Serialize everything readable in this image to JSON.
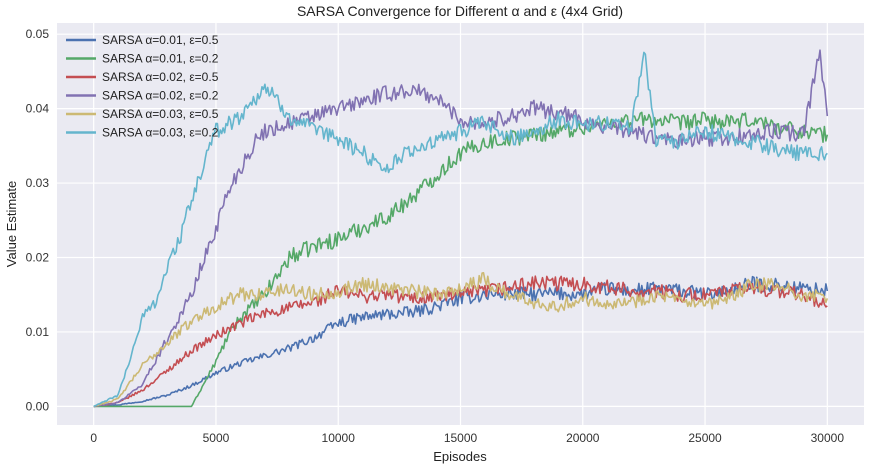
{
  "chart_data": {
    "type": "line",
    "title": "SARSA Convergence for Different α and ε (4x4 Grid)",
    "xlabel": "Episodes",
    "ylabel": "Value Estimate",
    "xlim": [
      -1500,
      31500
    ],
    "ylim": [
      -0.0025,
      0.0515
    ],
    "xticks": [
      0,
      5000,
      10000,
      15000,
      20000,
      25000,
      30000
    ],
    "xtick_labels": [
      "0",
      "5000",
      "10000",
      "15000",
      "20000",
      "25000",
      "30000"
    ],
    "yticks": [
      0.0,
      0.01,
      0.02,
      0.03,
      0.04,
      0.05
    ],
    "ytick_labels": [
      "0.00",
      "0.01",
      "0.02",
      "0.03",
      "0.04",
      "0.05"
    ],
    "grid": true,
    "legend_position": "top-left",
    "background": "#EAEAF2",
    "series": [
      {
        "name": "SARSA α=0.01, ε=0.5",
        "color": "#4C72B0",
        "x": [
          0,
          1000,
          2000,
          3000,
          4000,
          5000,
          6000,
          7000,
          8000,
          9000,
          10000,
          11000,
          12000,
          13000,
          14000,
          15000,
          16000,
          17000,
          18000,
          19000,
          20000,
          21000,
          22000,
          23000,
          24000,
          25000,
          26000,
          27000,
          28000,
          29000,
          30000
        ],
        "values": [
          0.0,
          0.0002,
          0.0007,
          0.0015,
          0.0028,
          0.0045,
          0.0058,
          0.0068,
          0.0078,
          0.0092,
          0.0112,
          0.012,
          0.0124,
          0.0126,
          0.0134,
          0.0145,
          0.015,
          0.0152,
          0.015,
          0.0152,
          0.015,
          0.0158,
          0.0155,
          0.0158,
          0.0155,
          0.015,
          0.0155,
          0.0165,
          0.0162,
          0.0158,
          0.0155
        ]
      },
      {
        "name": "SARSA α=0.01, ε=0.2",
        "color": "#55A868",
        "x": [
          0,
          1000,
          2000,
          3000,
          4000,
          4500,
          5000,
          5500,
          6000,
          6500,
          7000,
          7500,
          8000,
          9000,
          10000,
          11000,
          12000,
          13000,
          14000,
          15000,
          16000,
          17000,
          18000,
          19000,
          20000,
          21000,
          22000,
          23000,
          24000,
          25000,
          26000,
          27000,
          28000,
          29000,
          30000
        ],
        "values": [
          0.0,
          0.0,
          0.0,
          0.0,
          0.0,
          0.003,
          0.006,
          0.0095,
          0.012,
          0.0135,
          0.015,
          0.0175,
          0.02,
          0.0215,
          0.0225,
          0.024,
          0.0255,
          0.028,
          0.031,
          0.034,
          0.0355,
          0.036,
          0.0365,
          0.037,
          0.0375,
          0.038,
          0.0385,
          0.0385,
          0.038,
          0.0385,
          0.038,
          0.0385,
          0.0375,
          0.037,
          0.0365
        ]
      },
      {
        "name": "SARSA α=0.02, ε=0.5",
        "color": "#C44E52",
        "x": [
          0,
          1000,
          2000,
          3000,
          4000,
          5000,
          6000,
          7000,
          8000,
          9000,
          10000,
          11000,
          12000,
          13000,
          14000,
          15000,
          16000,
          17000,
          18000,
          19000,
          20000,
          21000,
          22000,
          23000,
          24000,
          25000,
          26000,
          27000,
          28000,
          29000,
          30000
        ],
        "values": [
          0.0,
          0.0005,
          0.0022,
          0.0048,
          0.0075,
          0.0095,
          0.0112,
          0.0125,
          0.0132,
          0.014,
          0.0155,
          0.0148,
          0.015,
          0.0145,
          0.0148,
          0.015,
          0.0155,
          0.016,
          0.0165,
          0.0165,
          0.0165,
          0.016,
          0.0155,
          0.0155,
          0.015,
          0.015,
          0.0155,
          0.016,
          0.0155,
          0.015,
          0.0135
        ]
      },
      {
        "name": "SARSA α=0.02, ε=0.2",
        "color": "#8172B2",
        "x": [
          0,
          1000,
          2000,
          3000,
          4000,
          5000,
          5500,
          6000,
          6500,
          7000,
          8000,
          9000,
          10000,
          11000,
          12000,
          13000,
          14000,
          15000,
          16000,
          17000,
          18000,
          19000,
          20000,
          21000,
          22000,
          23000,
          24000,
          25000,
          26000,
          27000,
          28000,
          29000,
          29700,
          30000
        ],
        "values": [
          0.0,
          0.0005,
          0.003,
          0.009,
          0.015,
          0.024,
          0.029,
          0.032,
          0.035,
          0.037,
          0.038,
          0.039,
          0.04,
          0.041,
          0.042,
          0.0425,
          0.0415,
          0.0385,
          0.038,
          0.039,
          0.04,
          0.0395,
          0.0385,
          0.0375,
          0.037,
          0.036,
          0.0355,
          0.036,
          0.036,
          0.0365,
          0.037,
          0.0365,
          0.0475,
          0.039
        ]
      },
      {
        "name": "SARSA α=0.03, ε=0.5",
        "color": "#CCB974",
        "x": [
          0,
          1000,
          2000,
          3000,
          4000,
          5000,
          6000,
          7000,
          8000,
          9000,
          10000,
          11000,
          12000,
          13000,
          14000,
          15000,
          16000,
          17000,
          18000,
          19000,
          20000,
          21000,
          22000,
          23000,
          24000,
          25000,
          26000,
          27000,
          28000,
          29000,
          30000
        ],
        "values": [
          0.0,
          0.001,
          0.0055,
          0.0085,
          0.0115,
          0.0135,
          0.015,
          0.0152,
          0.0158,
          0.015,
          0.0155,
          0.0165,
          0.016,
          0.0155,
          0.015,
          0.016,
          0.017,
          0.015,
          0.014,
          0.0135,
          0.0145,
          0.014,
          0.014,
          0.015,
          0.014,
          0.0135,
          0.0145,
          0.0165,
          0.016,
          0.015,
          0.0145
        ]
      },
      {
        "name": "SARSA α=0.03, ε=0.2",
        "color": "#64B5CD",
        "x": [
          0,
          1000,
          1500,
          2000,
          2500,
          3000,
          3500,
          4000,
          4500,
          5000,
          6000,
          7000,
          8000,
          9000,
          10000,
          11000,
          12000,
          13000,
          14000,
          15000,
          16000,
          17000,
          18000,
          19000,
          20000,
          21000,
          22000,
          22500,
          23000,
          24000,
          25000,
          26000,
          27000,
          28000,
          29000,
          30000
        ],
        "values": [
          0.0,
          0.0015,
          0.0065,
          0.012,
          0.014,
          0.0185,
          0.0225,
          0.0275,
          0.0325,
          0.037,
          0.039,
          0.043,
          0.039,
          0.037,
          0.036,
          0.034,
          0.032,
          0.0345,
          0.0355,
          0.037,
          0.038,
          0.036,
          0.037,
          0.0385,
          0.038,
          0.038,
          0.0375,
          0.048,
          0.036,
          0.0355,
          0.037,
          0.036,
          0.0355,
          0.0345,
          0.034,
          0.034
        ]
      }
    ]
  }
}
